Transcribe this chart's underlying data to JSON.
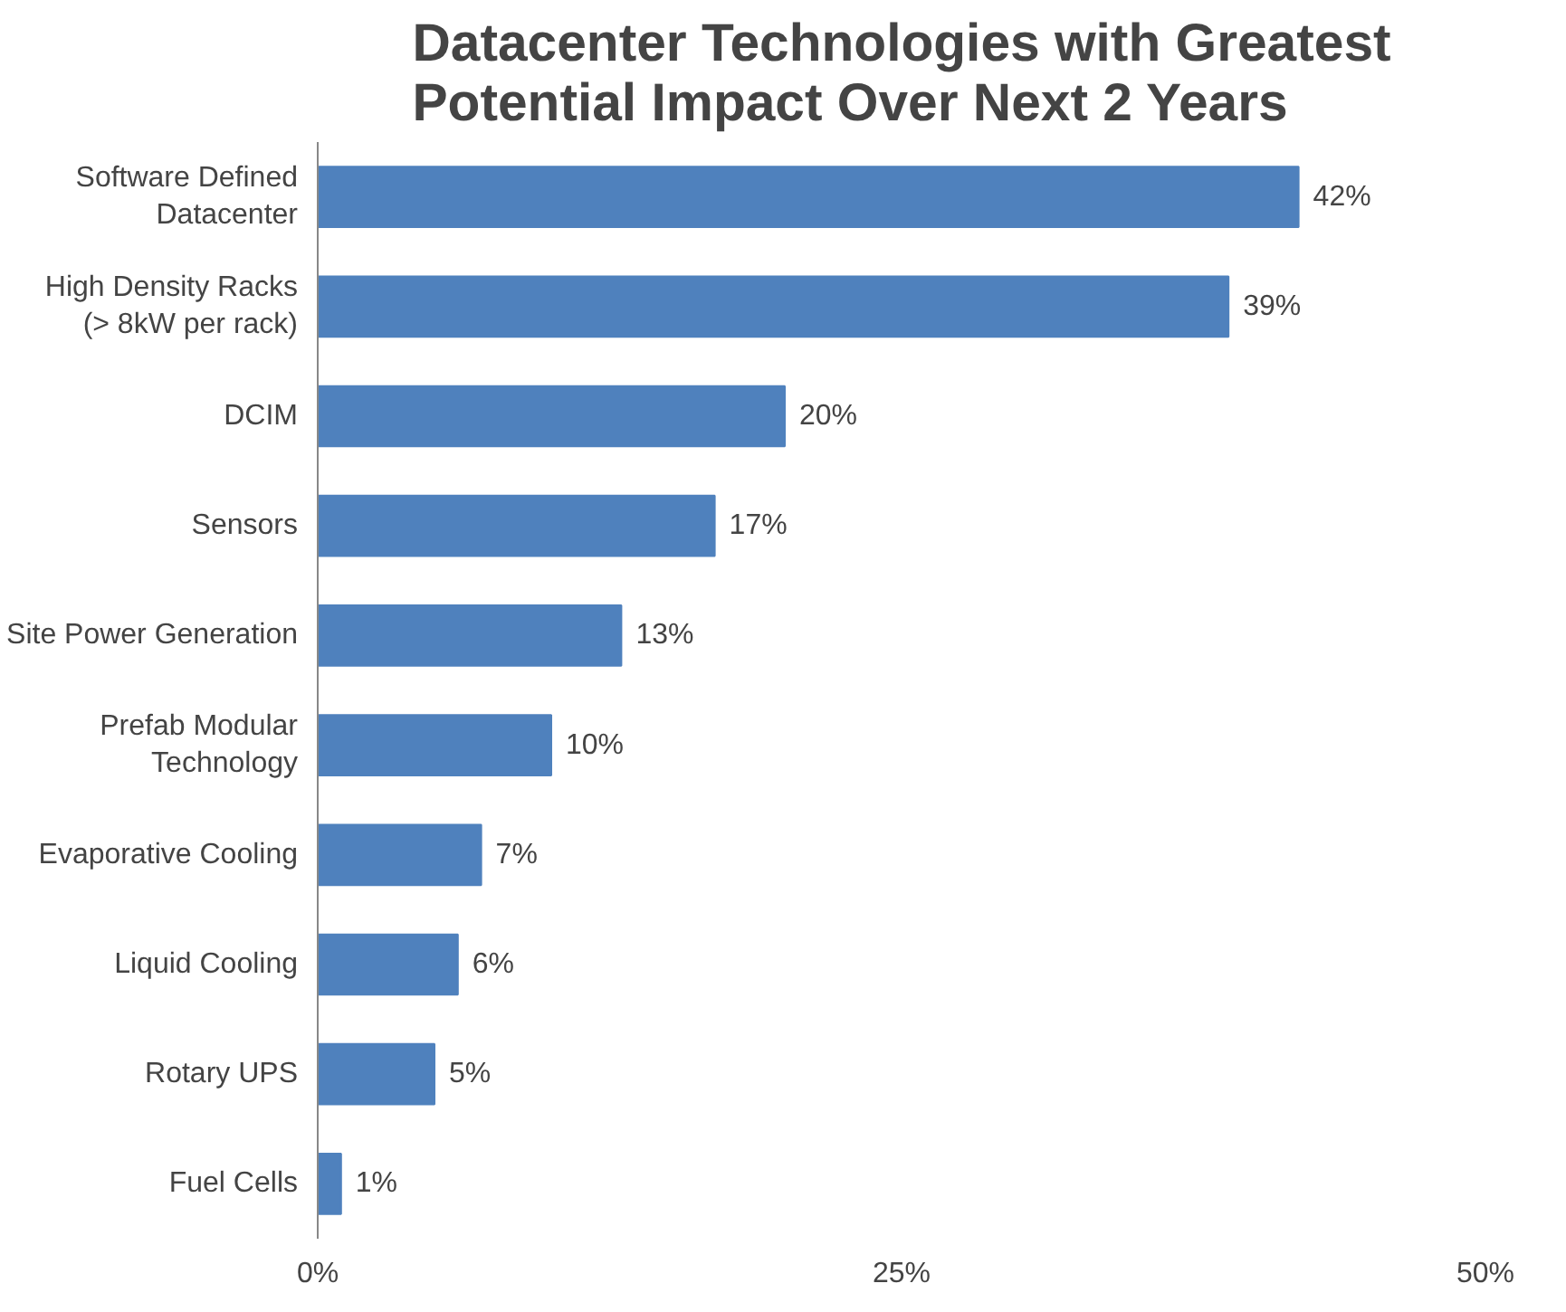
{
  "chart_data": {
    "type": "bar",
    "orientation": "horizontal",
    "title": "Datacenter Technologies with Greatest\nPotential Impact Over Next 2 Years",
    "categories": [
      "Software Defined\nDatacenter",
      "High Density Racks\n(> 8kW per rack)",
      "DCIM",
      "Sensors",
      "Site Power Generation",
      "Prefab Modular\nTechnology",
      "Evaporative Cooling",
      "Liquid Cooling",
      "Rotary UPS",
      "Fuel Cells"
    ],
    "values": [
      42,
      39,
      20,
      17,
      13,
      10,
      7,
      6,
      5,
      1
    ],
    "value_labels": [
      "42%",
      "39%",
      "20%",
      "17%",
      "13%",
      "10%",
      "7%",
      "6%",
      "5%",
      "1%"
    ],
    "color": "#4f81bd",
    "xlim": [
      0,
      50
    ],
    "xticks": [
      {
        "value": 0,
        "label": "0%"
      },
      {
        "value": 25,
        "label": "25%"
      },
      {
        "value": 50,
        "label": "50%"
      }
    ],
    "grid": false
  }
}
